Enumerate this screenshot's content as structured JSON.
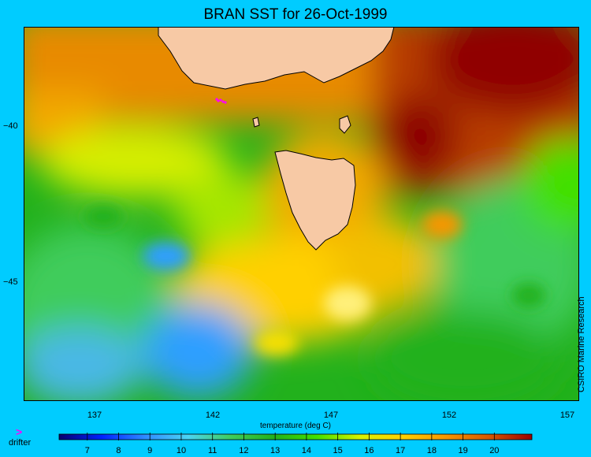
{
  "title": "BRAN SST for 26-Oct-1999",
  "credit": "CSIRO Marine Research",
  "map": {
    "lon_range": [
      134,
      157.5
    ],
    "lat_range": [
      -48.8,
      -36.8
    ],
    "lon_ticks": [
      {
        "value": 137,
        "label": "137"
      },
      {
        "value": 142,
        "label": "142"
      },
      {
        "value": 147,
        "label": "147"
      },
      {
        "value": 152,
        "label": "152"
      },
      {
        "value": 157,
        "label": "157"
      }
    ],
    "lat_ticks": [
      {
        "value": -40,
        "label": "−40"
      },
      {
        "value": -45,
        "label": "−45"
      }
    ],
    "land_color": "#f7c9a5",
    "coast_color": "#000000"
  },
  "colorbar": {
    "title": "temperature (deg C)",
    "range": [
      6.1,
      21.2
    ],
    "labels": [
      {
        "value": 7,
        "label": "7"
      },
      {
        "value": 8,
        "label": "8"
      },
      {
        "value": 9,
        "label": "9"
      },
      {
        "value": 10,
        "label": "10"
      },
      {
        "value": 11,
        "label": "11"
      },
      {
        "value": 12,
        "label": "12"
      },
      {
        "value": 13,
        "label": "13"
      },
      {
        "value": 14,
        "label": "14"
      },
      {
        "value": 15,
        "label": "15"
      },
      {
        "value": 16,
        "label": "16"
      },
      {
        "value": 17,
        "label": "17"
      },
      {
        "value": 18,
        "label": "18"
      },
      {
        "value": 19,
        "label": "19"
      },
      {
        "value": 20,
        "label": "20"
      }
    ],
    "colors": [
      "#08006e",
      "#0022ff",
      "#2f8bff",
      "#4bd4f4",
      "#3fcc5c",
      "#22b11c",
      "#42e000",
      "#d8f200",
      "#ffd000",
      "#f79600",
      "#d85800",
      "#9c0000"
    ]
  },
  "legend": {
    "symbol": ">",
    "label": "drifter",
    "color": "#ff00ff"
  }
}
